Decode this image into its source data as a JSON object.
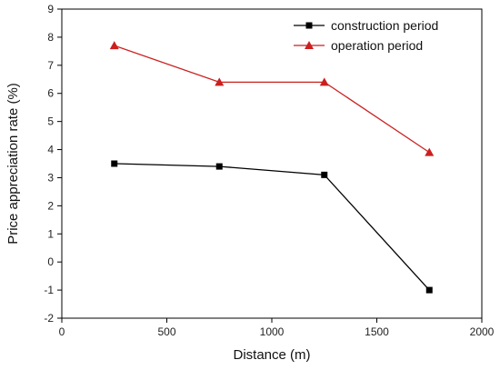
{
  "chart_data": {
    "type": "line",
    "title": "",
    "xlabel": "Distance (m)",
    "ylabel": "Price appreciation rate (%)",
    "xlim": [
      0,
      2000
    ],
    "ylim": [
      -2,
      9
    ],
    "xticks": [
      0,
      500,
      1000,
      1500,
      2000
    ],
    "yticks": [
      -2,
      -1,
      0,
      1,
      2,
      3,
      4,
      5,
      6,
      7,
      8,
      9
    ],
    "grid": false,
    "legend_position": "top-right",
    "series": [
      {
        "name": "construction period",
        "color": "#000000",
        "marker": "square",
        "x": [
          250,
          750,
          1250,
          1750
        ],
        "y": [
          3.5,
          3.4,
          3.1,
          -1.0
        ]
      },
      {
        "name": "operation period",
        "color": "#cc1f1f",
        "marker": "triangle",
        "x": [
          250,
          750,
          1250,
          1750
        ],
        "y": [
          7.7,
          6.4,
          6.4,
          3.9
        ]
      }
    ]
  }
}
